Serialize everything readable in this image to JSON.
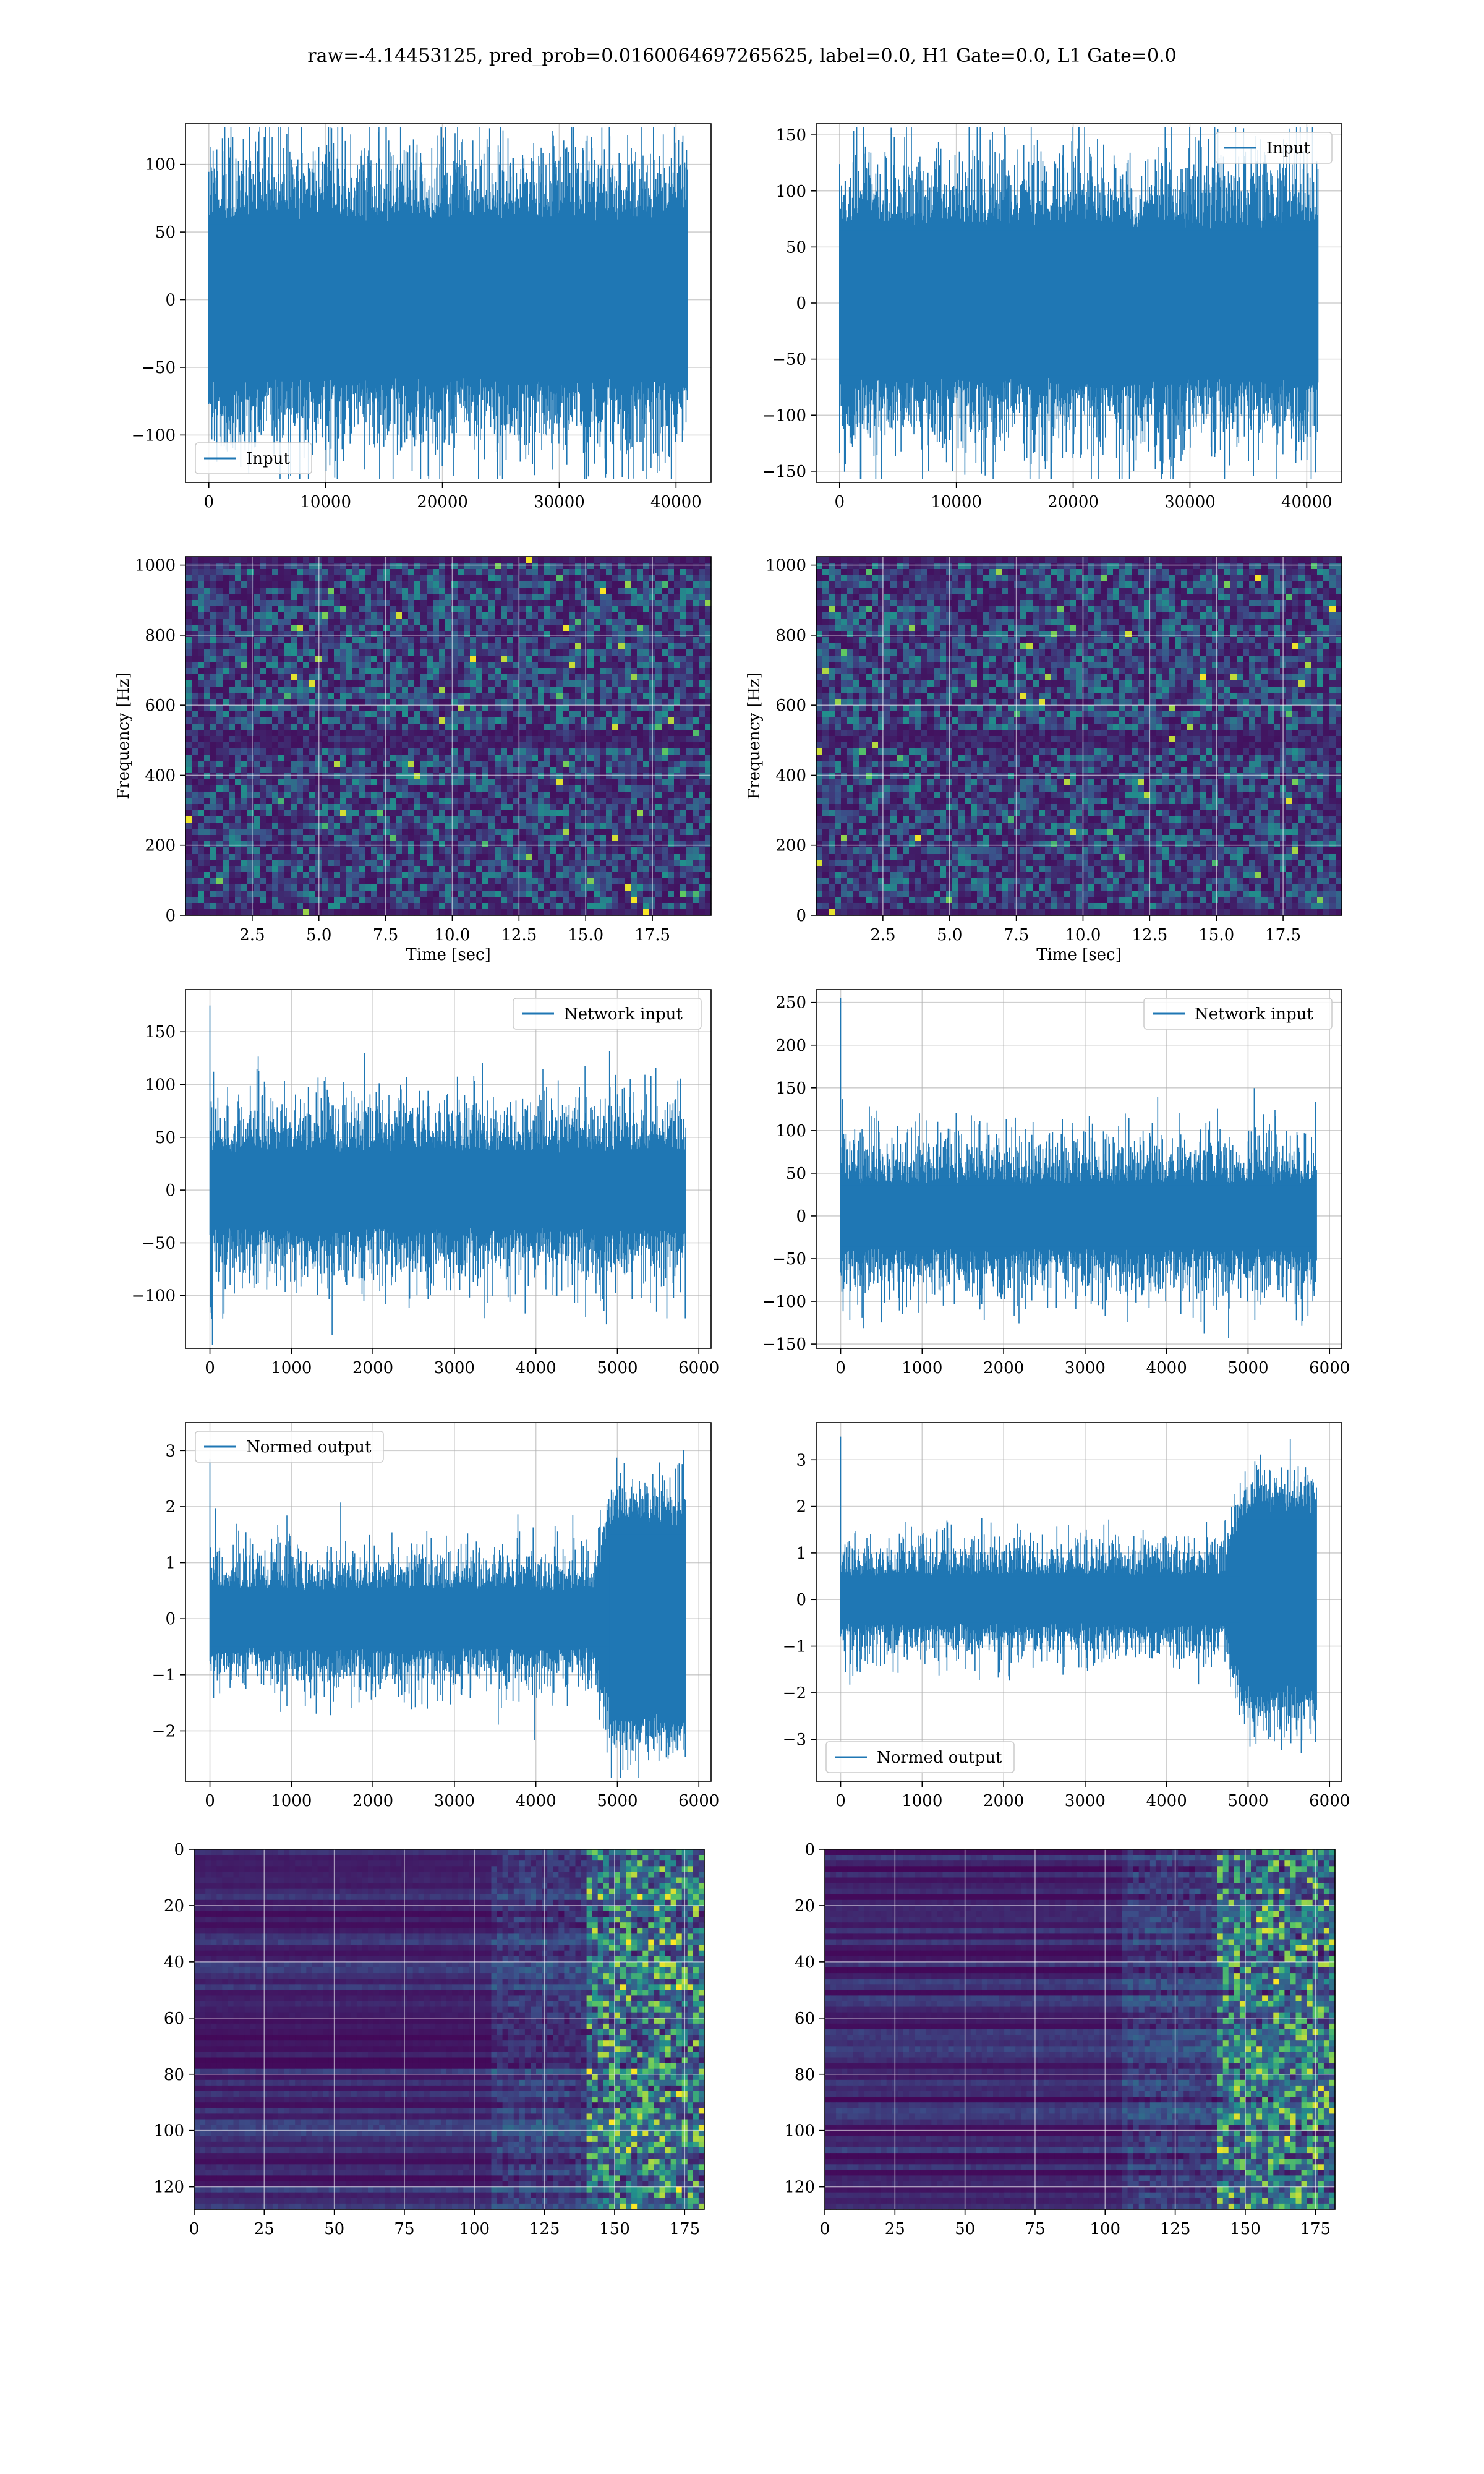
{
  "title": "raw=-4.14453125, pred_prob=0.0160064697265625, label=0.0, H1 Gate=0.0, L1 Gate=0.0",
  "colors": {
    "line": "#1f77b4",
    "grid": "#b0b0b0",
    "viridis_low": "#440154",
    "viridis_high": "#fde725"
  },
  "chart_data": [
    {
      "id": "raw-left",
      "type": "line",
      "legend": "Input",
      "legend_placement": "lower-left",
      "xlim": [
        -2000,
        43000
      ],
      "ylim": [
        -135,
        130
      ],
      "xticks": [
        0,
        10000,
        20000,
        30000,
        40000
      ],
      "yticks": [
        -100,
        -50,
        0,
        50,
        100
      ],
      "n_samples": 40960,
      "band": 62,
      "spike": 95,
      "grid": true
    },
    {
      "id": "raw-right",
      "type": "line",
      "legend": "Input",
      "legend_placement": "upper-right",
      "xlim": [
        -2000,
        43000
      ],
      "ylim": [
        -160,
        160
      ],
      "xticks": [
        0,
        10000,
        20000,
        30000,
        40000
      ],
      "yticks": [
        -150,
        -100,
        -50,
        0,
        50,
        100,
        150
      ],
      "n_samples": 40960,
      "band": 72,
      "spike": 115,
      "grid": true
    },
    {
      "id": "spec-left",
      "type": "heatmap",
      "xlabel": "Time [sec]",
      "ylabel": "Frequency [Hz]",
      "xlim": [
        0,
        19.7
      ],
      "ylim": [
        0,
        1024
      ],
      "xticks": [
        2.5,
        5.0,
        7.5,
        10.0,
        12.5,
        15.0,
        17.5
      ],
      "yticks": [
        0,
        200,
        400,
        600,
        800,
        1000
      ],
      "xtick_labels": [
        "2.5",
        "5.0",
        "7.5",
        "10.0",
        "12.5",
        "15.0",
        "17.5"
      ],
      "grid": true
    },
    {
      "id": "spec-right",
      "type": "heatmap",
      "xlabel": "Time [sec]",
      "ylabel": "Frequency [Hz]",
      "xlim": [
        0,
        19.7
      ],
      "ylim": [
        0,
        1024
      ],
      "xticks": [
        2.5,
        5.0,
        7.5,
        10.0,
        12.5,
        15.0,
        17.5
      ],
      "yticks": [
        0,
        200,
        400,
        600,
        800,
        1000
      ],
      "xtick_labels": [
        "2.5",
        "5.0",
        "7.5",
        "10.0",
        "12.5",
        "15.0",
        "17.5"
      ],
      "grid": true
    },
    {
      "id": "net-left",
      "type": "line",
      "legend": "Network input",
      "legend_placement": "upper-right",
      "xlim": [
        -300,
        6150
      ],
      "ylim": [
        -150,
        190
      ],
      "xticks": [
        0,
        1000,
        2000,
        3000,
        4000,
        5000,
        6000
      ],
      "yticks": [
        -100,
        -50,
        0,
        50,
        100,
        150
      ],
      "n_samples": 5840,
      "band": 38,
      "spike": 90,
      "first_spike": 175,
      "grid": true
    },
    {
      "id": "net-right",
      "type": "line",
      "legend": "Network input",
      "legend_placement": "upper-right",
      "xlim": [
        -300,
        6150
      ],
      "ylim": [
        -155,
        265
      ],
      "xticks": [
        0,
        1000,
        2000,
        3000,
        4000,
        5000,
        6000
      ],
      "yticks": [
        -150,
        -100,
        -50,
        0,
        50,
        100,
        150,
        200,
        250
      ],
      "n_samples": 5840,
      "band": 40,
      "spike": 100,
      "first_spike": 255,
      "grid": true
    },
    {
      "id": "norm-left",
      "type": "line",
      "legend": "Normed output",
      "legend_placement": "upper-left",
      "xlim": [
        -300,
        6150
      ],
      "ylim": [
        -2.9,
        3.5
      ],
      "xticks": [
        0,
        1000,
        2000,
        3000,
        4000,
        5000,
        6000
      ],
      "yticks": [
        -2,
        -1,
        0,
        1,
        2,
        3
      ],
      "n_samples": 5840,
      "band": 0.55,
      "spike": 1.3,
      "burst_start": 4700,
      "burst_amp": 2.0,
      "first_spike": 2.85,
      "grid": true
    },
    {
      "id": "norm-right",
      "type": "line",
      "legend": "Normed output",
      "legend_placement": "lower-left",
      "xlim": [
        -300,
        6150
      ],
      "ylim": [
        -3.9,
        3.8
      ],
      "xticks": [
        0,
        1000,
        2000,
        3000,
        4000,
        5000,
        6000
      ],
      "yticks": [
        -3,
        -2,
        -1,
        0,
        1,
        2,
        3
      ],
      "n_samples": 5840,
      "band": 0.55,
      "spike": 1.3,
      "burst_start": 4700,
      "burst_amp": 2.3,
      "first_spike": 3.5,
      "grid": true
    },
    {
      "id": "feat-left",
      "type": "heatmap",
      "xlim": [
        0,
        182
      ],
      "ylim": [
        128,
        0
      ],
      "xticks": [
        0,
        25,
        50,
        75,
        100,
        125,
        150,
        175
      ],
      "yticks": [
        0,
        20,
        40,
        60,
        80,
        100,
        120
      ],
      "grid": true
    },
    {
      "id": "feat-right",
      "type": "heatmap",
      "xlim": [
        0,
        182
      ],
      "ylim": [
        128,
        0
      ],
      "xticks": [
        0,
        25,
        50,
        75,
        100,
        125,
        150,
        175
      ],
      "yticks": [
        0,
        20,
        40,
        60,
        80,
        100,
        120
      ],
      "grid": true
    }
  ]
}
